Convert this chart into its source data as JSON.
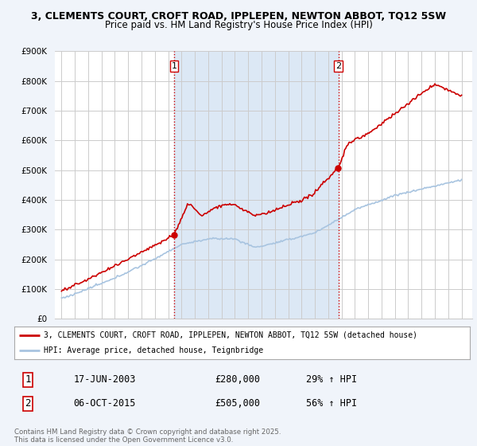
{
  "title_line1": "3, CLEMENTS COURT, CROFT ROAD, IPPLEPEN, NEWTON ABBOT, TQ12 5SW",
  "title_line2": "Price paid vs. HM Land Registry's House Price Index (HPI)",
  "ylim": [
    0,
    900000
  ],
  "yticks": [
    0,
    100000,
    200000,
    300000,
    400000,
    500000,
    600000,
    700000,
    800000,
    900000
  ],
  "ytick_labels": [
    "£0",
    "£100K",
    "£200K",
    "£300K",
    "£400K",
    "£500K",
    "£600K",
    "£700K",
    "£800K",
    "£900K"
  ],
  "hpi_color": "#a8c4e0",
  "price_color": "#cc0000",
  "shade_color": "#dce8f5",
  "legend_label1": "3, CLEMENTS COURT, CROFT ROAD, IPPLEPEN, NEWTON ABBOT, TQ12 5SW (detached house)",
  "legend_label2": "HPI: Average price, detached house, Teignbridge",
  "footer": "Contains HM Land Registry data © Crown copyright and database right 2025.\nThis data is licensed under the Open Government Licence v3.0.",
  "bg_color": "#f0f4fa",
  "plot_bg_color": "#ffffff",
  "grid_color": "#cccccc",
  "dashed_color": "#cc0000",
  "year1": 2003.46,
  "year2": 2015.76,
  "price1": 280000,
  "price2": 505000,
  "date1": "17-JUN-2003",
  "date2": "06-OCT-2015",
  "pct1": "29% ↑ HPI",
  "pct2": "56% ↑ HPI"
}
